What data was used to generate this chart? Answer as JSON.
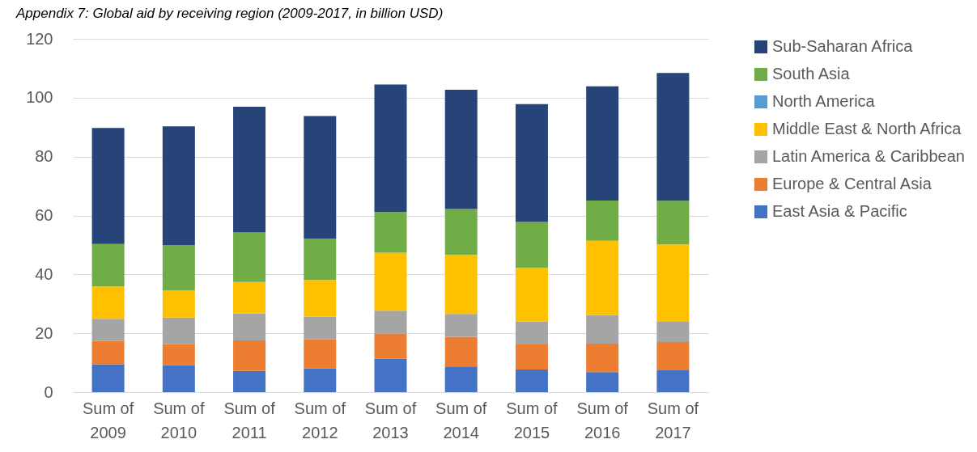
{
  "chart_data": {
    "type": "bar",
    "title": "Appendix 7: Global aid by receiving region (2009-2017, in billion USD)",
    "categories": [
      "Sum of 2009",
      "Sum of 2010",
      "Sum of 2011",
      "Sum of 2012",
      "Sum of 2013",
      "Sum of 2014",
      "Sum of 2015",
      "Sum of 2016",
      "Sum of 2017"
    ],
    "stacked": true,
    "ylim": [
      0,
      120
    ],
    "yticks": [
      0,
      20,
      40,
      60,
      80,
      100,
      120
    ],
    "grid": "y",
    "legend": "right",
    "series": [
      {
        "name": "East Asia & Pacific",
        "color": "#4472c4",
        "values": [
          9.5,
          9.1,
          7.2,
          8.1,
          11.3,
          8.7,
          7.7,
          6.8,
          7.4
        ]
      },
      {
        "name": "Europe & Central Asia",
        "color": "#ed7d31",
        "values": [
          7.9,
          7.2,
          10.4,
          9.8,
          8.6,
          10.1,
          8.5,
          9.7,
          9.6
        ]
      },
      {
        "name": "Latin America & Caribbean",
        "color": "#a5a5a5",
        "values": [
          7.5,
          9.0,
          9.2,
          7.7,
          7.8,
          7.8,
          7.8,
          9.7,
          6.9
        ]
      },
      {
        "name": "Middle East & North Africa",
        "color": "#ffc000",
        "values": [
          11.0,
          9.3,
          10.6,
          12.5,
          19.7,
          20.0,
          18.3,
          25.2,
          26.3
        ]
      },
      {
        "name": "North America",
        "color": "#5b9bd5",
        "values": [
          0,
          0,
          0,
          0,
          0,
          0,
          0,
          0,
          0
        ]
      },
      {
        "name": "South Asia",
        "color": "#70ad47",
        "values": [
          14.4,
          15.4,
          16.8,
          14.0,
          13.8,
          15.6,
          15.5,
          13.7,
          14.8
        ]
      },
      {
        "name": "Sub-Saharan Africa",
        "color": "#264478",
        "values": [
          39.4,
          40.3,
          42.7,
          41.7,
          43.3,
          40.5,
          40.0,
          38.8,
          43.4
        ]
      }
    ]
  }
}
